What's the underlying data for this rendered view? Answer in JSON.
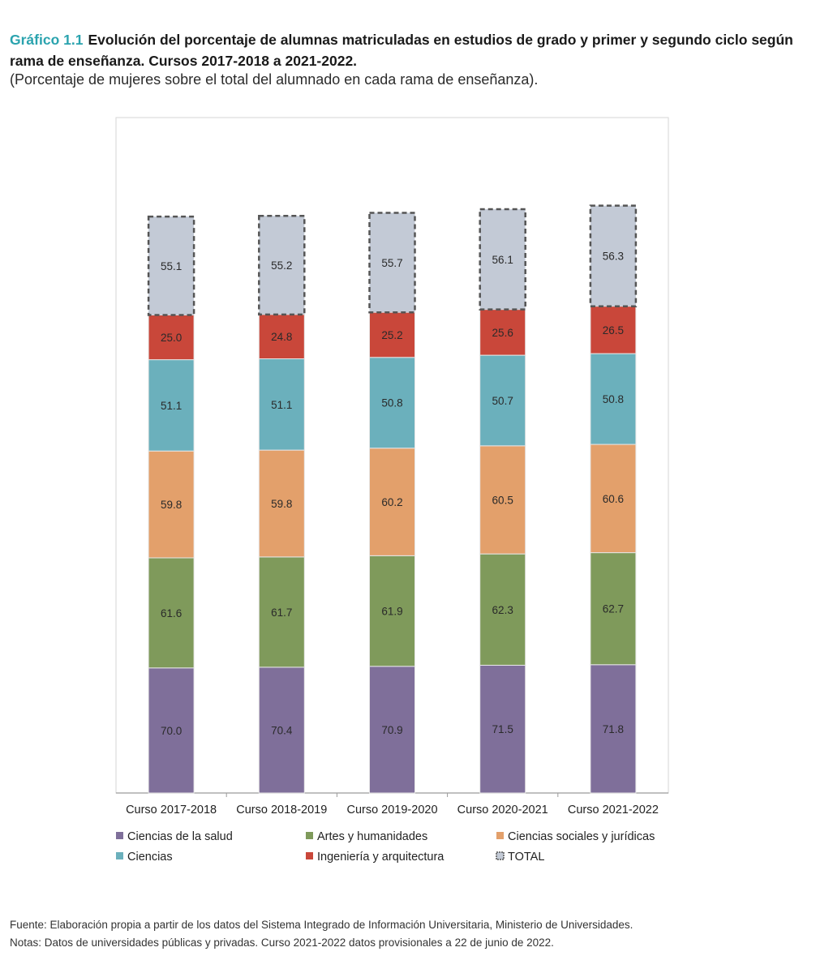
{
  "header": {
    "figure_label": "Gráfico 1.1",
    "title": "Evolución del porcentaje de alumnas matriculadas en estudios de grado y primer y segundo ciclo según rama de enseñanza. Cursos 2017-2018 a 2021-2022.",
    "subtitle": "(Porcentaje de mujeres sobre el total del alumnado en cada rama de enseñanza)."
  },
  "chart_data": {
    "type": "bar",
    "stacked": true,
    "categories": [
      "Curso 2017-2018",
      "Curso 2018-2019",
      "Curso 2019-2020",
      "Curso 2020-2021",
      "Curso 2021-2022"
    ],
    "series": [
      {
        "name": "Ciencias de la salud",
        "color": "#7f6f9a",
        "values": [
          70.0,
          70.4,
          70.9,
          71.5,
          71.8
        ],
        "labels": [
          "70.0",
          "70.4",
          "70.9",
          "71.5",
          "71.8"
        ]
      },
      {
        "name": "Artes y humanidades",
        "color": "#7f9a5b",
        "values": [
          61.6,
          61.7,
          61.9,
          62.3,
          62.7
        ],
        "labels": [
          "61.6",
          "61.7",
          "61.9",
          "62.3",
          "62.7"
        ]
      },
      {
        "name": "Ciencias sociales y jurídicas",
        "color": "#e3a06b",
        "values": [
          59.8,
          59.8,
          60.2,
          60.5,
          60.6
        ],
        "labels": [
          "59.8",
          "59.8",
          "60.2",
          "60.5",
          "60.6"
        ]
      },
      {
        "name": "Ciencias",
        "color": "#6bb0bc",
        "values": [
          51.1,
          51.1,
          50.8,
          50.7,
          50.8
        ],
        "labels": [
          "51.1",
          "51.1",
          "50.8",
          "50.7",
          "50.8"
        ]
      },
      {
        "name": "Ingeniería y arquitectura",
        "color": "#c9473a",
        "values": [
          25.0,
          24.8,
          25.2,
          25.6,
          26.5
        ],
        "labels": [
          "25.0",
          "24.8",
          "25.2",
          "25.6",
          "26.5"
        ]
      },
      {
        "name": "TOTAL",
        "color": "#c3cad6",
        "values": [
          55.1,
          55.2,
          55.7,
          56.1,
          56.3
        ],
        "labels": [
          "55.1",
          "55.2",
          "55.7",
          "56.1",
          "56.3"
        ]
      }
    ],
    "legend_order": [
      "Ciencias de la salud",
      "Artes y humanidades",
      "Ciencias sociales y jurídicas",
      "Ciencias",
      "Ingeniería y arquitectura",
      "TOTAL"
    ],
    "ylim": [
      0,
      378
    ],
    "legend_position": "bottom",
    "xlabel": "",
    "ylabel": ""
  },
  "footer": {
    "source": "Fuente: Elaboración propia a partir de los datos del Sistema Integrado de Información Universitaria, Ministerio de Universidades.",
    "notes": "Notas: Datos de universidades públicas y privadas. Curso 2021-2022 datos provisionales a 22 de junio de 2022."
  }
}
